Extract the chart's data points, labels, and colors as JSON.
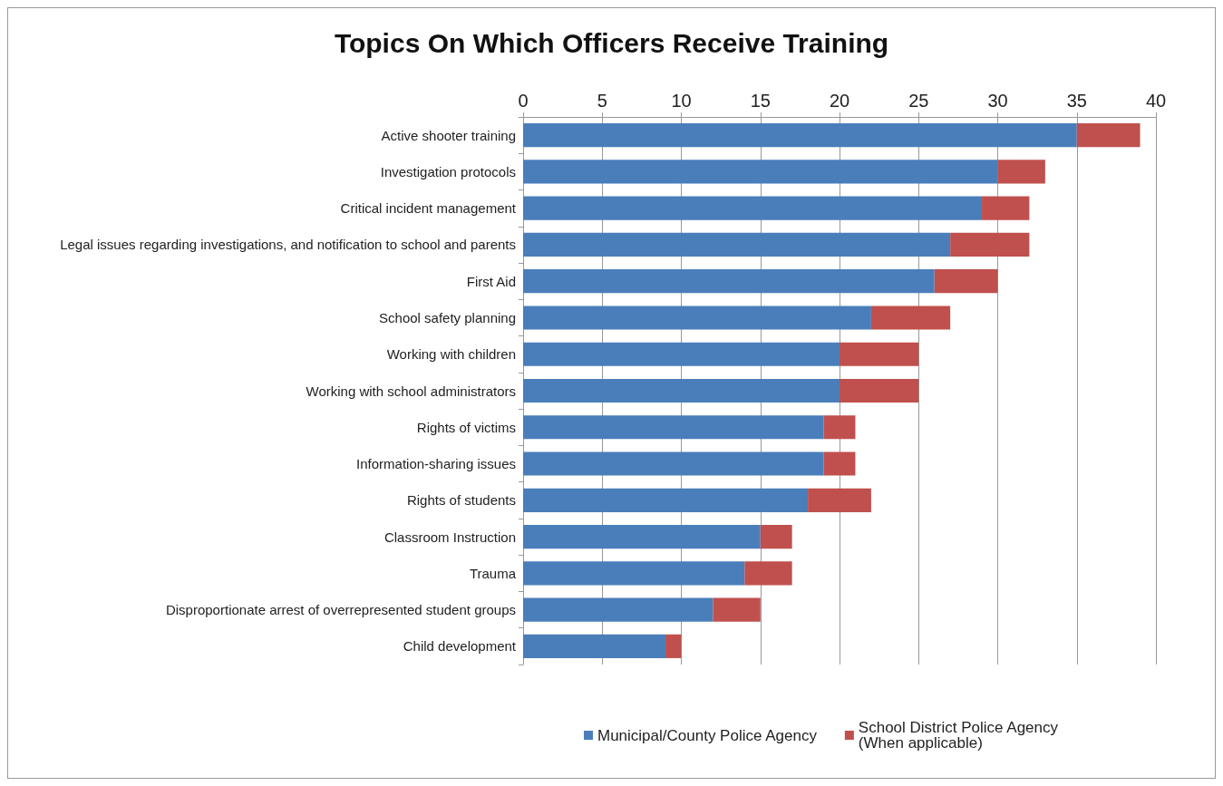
{
  "chart_data": {
    "type": "bar",
    "orientation": "horizontal",
    "stacked": true,
    "title": "Topics On Which Officers Receive Training",
    "categories": [
      "Active shooter training",
      "Investigation protocols",
      "Critical incident management",
      "Legal issues regarding investigations, and notification to school and parents",
      "First Aid",
      "School safety planning",
      "Working with children",
      "Working with school administrators",
      "Rights of victims",
      "Information-sharing issues",
      "Rights of students",
      "Classroom Instruction",
      "Trauma",
      "Disproportionate arrest of overrepresented student groups",
      "Child development"
    ],
    "series": [
      {
        "name": "Municipal/County Police Agency",
        "color": "#4a7ebb",
        "values": [
          35,
          30,
          29,
          27,
          26,
          22,
          20,
          20,
          19,
          19,
          18,
          15,
          14,
          12,
          9
        ]
      },
      {
        "name": "School District Police Agency\n(When applicable)",
        "color": "#c0504d",
        "values": [
          4,
          3,
          3,
          5,
          4,
          5,
          5,
          5,
          2,
          2,
          4,
          2,
          3,
          3,
          1
        ]
      }
    ],
    "xlim": [
      0,
      40
    ],
    "xticks": [
      0,
      5,
      10,
      15,
      20,
      25,
      30,
      35,
      40
    ],
    "grid": "x",
    "legend": "bottom"
  }
}
